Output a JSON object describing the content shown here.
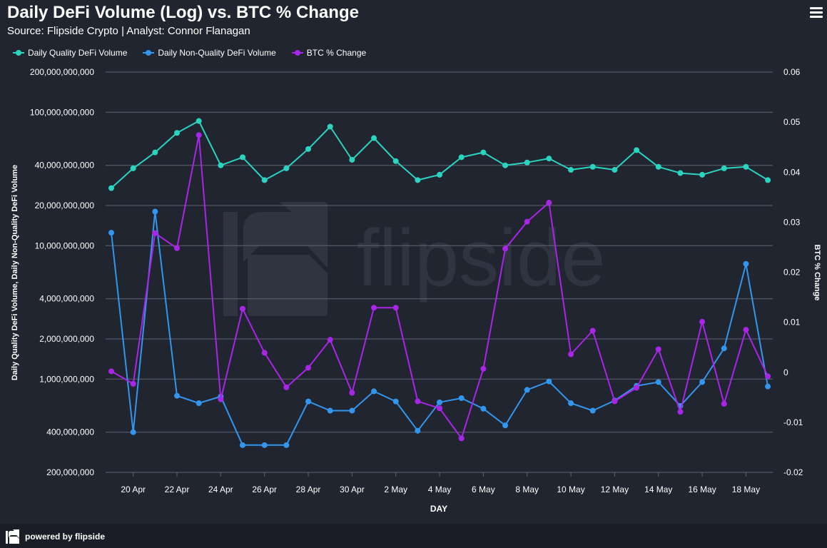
{
  "header": {
    "title": "Daily DeFi Volume (Log) vs. BTC % Change",
    "subtitle": "Source: Flipside Crypto | Analyst: Connor Flanagan"
  },
  "footer": {
    "text": "powered by flipside"
  },
  "watermark": {
    "text": "flipside"
  },
  "colors": {
    "background": "#21252f",
    "grid": "#5e6471",
    "quality": "#2ad4c0",
    "non_quality": "#3396ee",
    "btc": "#a925e8"
  },
  "chart_data": {
    "type": "line",
    "title": "Daily DeFi Volume (Log) vs. BTC % Change",
    "xlabel": "DAY",
    "ylabel_left": "Daily Quality DeFi Volume, Daily Non-Quality DeFi Volume",
    "ylabel_right": "BTC % Change",
    "y_left_scale": "log",
    "y_left_ticks": [
      {
        "value": 200000000,
        "label": "200,000,000"
      },
      {
        "value": 400000000,
        "label": "400,000,000"
      },
      {
        "value": 1000000000,
        "label": "1,000,000,000"
      },
      {
        "value": 2000000000,
        "label": "2,000,000,000"
      },
      {
        "value": 4000000000,
        "label": "4,000,000,000"
      },
      {
        "value": 10000000000,
        "label": "10,000,000,000"
      },
      {
        "value": 20000000000,
        "label": "20,000,000,000"
      },
      {
        "value": 40000000000,
        "label": "40,000,000,000"
      },
      {
        "value": 100000000000,
        "label": "100,000,000,000"
      },
      {
        "value": 200000000000,
        "label": "200,000,000,000"
      }
    ],
    "y_right_ticks": [
      {
        "value": 0.06,
        "label": "0.06"
      },
      {
        "value": 0.05,
        "label": "0.05"
      },
      {
        "value": 0.04,
        "label": "0.04"
      },
      {
        "value": 0.03,
        "label": "0.03"
      },
      {
        "value": 0.02,
        "label": "0.02"
      },
      {
        "value": 0.01,
        "label": "0.01"
      },
      {
        "value": 0,
        "label": "0"
      },
      {
        "value": -0.01,
        "label": "-0.01"
      },
      {
        "value": -0.02,
        "label": "-0.02"
      }
    ],
    "y_right_range": [
      -0.02,
      0.06
    ],
    "x_tick_labels": [
      "20 Apr",
      "22 Apr",
      "24 Apr",
      "26 Apr",
      "28 Apr",
      "30 Apr",
      "2 May",
      "4 May",
      "6 May",
      "8 May",
      "10 May",
      "12 May",
      "14 May",
      "16 May",
      "18 May"
    ],
    "x": [
      "19 Apr",
      "20 Apr",
      "21 Apr",
      "22 Apr",
      "23 Apr",
      "24 Apr",
      "25 Apr",
      "26 Apr",
      "27 Apr",
      "28 Apr",
      "29 Apr",
      "30 Apr",
      "1 May",
      "2 May",
      "3 May",
      "4 May",
      "5 May",
      "6 May",
      "7 May",
      "8 May",
      "9 May",
      "10 May",
      "11 May",
      "12 May",
      "13 May",
      "14 May",
      "15 May",
      "16 May",
      "17 May",
      "18 May",
      "19 May"
    ],
    "series": [
      {
        "name": "Daily Quality DeFi Volume",
        "axis": "left",
        "color": "#2ad4c0",
        "values": [
          27000000000,
          38000000000,
          50000000000,
          70000000000,
          86000000000,
          40000000000,
          46000000000,
          31000000000,
          38000000000,
          53000000000,
          78000000000,
          44000000000,
          64000000000,
          43000000000,
          31000000000,
          34000000000,
          46000000000,
          50000000000,
          40000000000,
          42000000000,
          45000000000,
          37000000000,
          39000000000,
          37000000000,
          52000000000,
          39000000000,
          35000000000,
          34000000000,
          38000000000,
          39000000000,
          31000000000
        ]
      },
      {
        "name": "Daily Non-Quality DeFi Volume",
        "axis": "left",
        "color": "#3396ee",
        "values": [
          12500000000,
          400000000,
          18000000000,
          750000000,
          660000000,
          740000000,
          320000000,
          320000000,
          320000000,
          680000000,
          580000000,
          580000000,
          810000000,
          680000000,
          410000000,
          670000000,
          720000000,
          600000000,
          450000000,
          830000000,
          960000000,
          660000000,
          580000000,
          690000000,
          890000000,
          950000000,
          630000000,
          950000000,
          1700000000,
          7300000000,
          880000000
        ]
      },
      {
        "name": "BTC % Change",
        "axis": "right",
        "color": "#a925e8",
        "values": [
          0.0002,
          -0.0023,
          0.0278,
          0.0248,
          0.0474,
          -0.0054,
          0.0127,
          0.0039,
          -0.003,
          0.0009,
          0.0065,
          -0.0041,
          0.0129,
          0.0129,
          -0.0058,
          -0.0072,
          -0.0132,
          0.0007,
          0.0247,
          0.0301,
          0.0339,
          0.0036,
          0.0083,
          -0.0058,
          -0.0031,
          0.0046,
          -0.0079,
          0.0101,
          -0.0063,
          0.0085,
          -0.0008
        ]
      }
    ]
  }
}
